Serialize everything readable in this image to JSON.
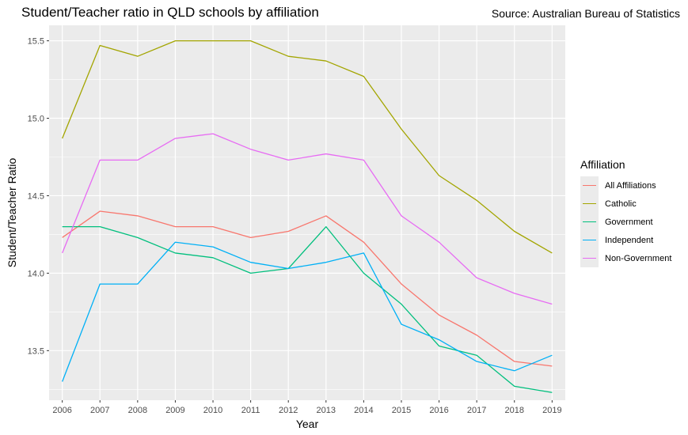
{
  "header": {
    "title": "Student/Teacher ratio in QLD schools by affiliation",
    "source": "Source: Australian Bureau of Statistics"
  },
  "chart_data": {
    "type": "line",
    "title": "Student/Teacher ratio in QLD schools by affiliation",
    "xlabel": "Year",
    "ylabel": "Student/Teacher Ratio",
    "x": [
      2006,
      2007,
      2008,
      2009,
      2010,
      2011,
      2012,
      2013,
      2014,
      2015,
      2016,
      2017,
      2018,
      2019
    ],
    "xlim": [
      2005.65,
      2019.35
    ],
    "ylim": [
      13.18,
      15.6
    ],
    "yticks": [
      13.5,
      14.0,
      14.5,
      15.0,
      15.5
    ],
    "ytick_labels": [
      "13.5",
      "14.0",
      "14.5",
      "15.0",
      "15.5"
    ],
    "grid": true,
    "legend_title": "Affiliation",
    "legend_position": "right",
    "series": [
      {
        "name": "All Affiliations",
        "color": "#F8766D",
        "values": [
          14.23,
          14.4,
          14.37,
          14.3,
          14.3,
          14.23,
          14.27,
          14.37,
          14.2,
          13.93,
          13.73,
          13.6,
          13.43,
          13.4
        ]
      },
      {
        "name": "Catholic",
        "color": "#A3A500",
        "values": [
          14.87,
          15.47,
          15.4,
          15.5,
          15.5,
          15.5,
          15.4,
          15.37,
          15.27,
          14.93,
          14.63,
          14.47,
          14.27,
          14.13
        ]
      },
      {
        "name": "Government",
        "color": "#00BF7D",
        "values": [
          14.3,
          14.3,
          14.23,
          14.13,
          14.1,
          14.0,
          14.03,
          14.3,
          14.0,
          13.8,
          13.53,
          13.47,
          13.27,
          13.23
        ]
      },
      {
        "name": "Independent",
        "color": "#00B0F6",
        "values": [
          13.3,
          13.93,
          13.93,
          14.2,
          14.17,
          14.07,
          14.03,
          14.07,
          14.13,
          13.67,
          13.57,
          13.43,
          13.37,
          13.47
        ]
      },
      {
        "name": "Non-Government",
        "color": "#E76BF3",
        "values": [
          14.13,
          14.73,
          14.73,
          14.87,
          14.9,
          14.8,
          14.73,
          14.77,
          14.73,
          14.37,
          14.2,
          13.97,
          13.87,
          13.8
        ]
      }
    ]
  }
}
